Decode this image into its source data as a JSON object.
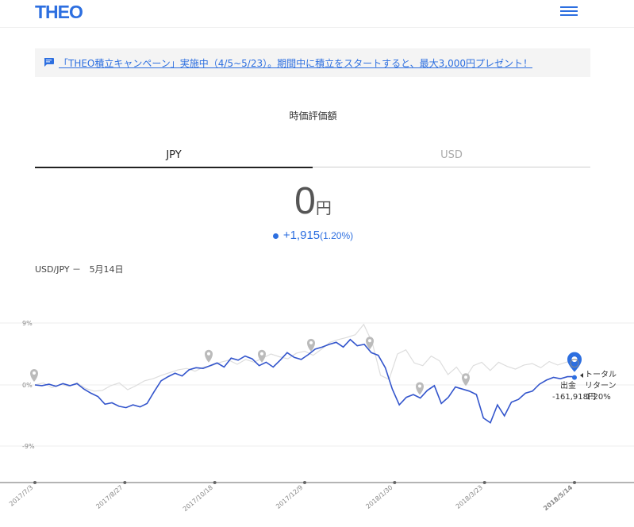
{
  "header": {
    "logo": "THEO",
    "menu_icon": "hamburger-menu-icon"
  },
  "banner": {
    "icon": "message-icon",
    "text": "「THEO積立キャンペーン」実施中（4/5~5/23）。期間中に積立をスタートすると、最大3,000円プレゼント！"
  },
  "section_title": "時価評価額",
  "tabs": [
    {
      "label": "JPY",
      "active": true
    },
    {
      "label": "USD",
      "active": false
    }
  ],
  "valuation": {
    "amount": "0",
    "unit": "円",
    "change": "+1,915",
    "change_pct": "(1.20%)"
  },
  "rate": {
    "label": "USD/JPY －",
    "date": "5月14日"
  },
  "chart_data": {
    "type": "line",
    "grid_labels": [
      "9%",
      "0%",
      "-9%"
    ],
    "x_ticks": [
      "2017/7/3",
      "2017/8/27",
      "2017/10/18",
      "2017/12/9",
      "2018/1/30",
      "2018/3/23",
      "2018/5/14"
    ],
    "ylim": [
      -9,
      9
    ],
    "series": [
      {
        "values": [
          0,
          -0.1,
          0.1,
          -0.2,
          0.2,
          -0.1,
          0.2,
          -0.6,
          -1.2,
          -1.7,
          -2.8,
          -2.6,
          -3.1,
          -3.3,
          -2.9,
          -3.2,
          -2.7,
          -1.0,
          0.6,
          1.2,
          1.7,
          1.3,
          2.2,
          2.5,
          2.4,
          2.8,
          3.2,
          2.6,
          3.9,
          3.6,
          4.2,
          3.8,
          2.8,
          3.3,
          2.6,
          3.6,
          4.7,
          4.0,
          3.7,
          4.4,
          5.2,
          5.5,
          5.9,
          6.2,
          5.5,
          6.6,
          5.7,
          5.9,
          4.7,
          4.3,
          2.5,
          -0.6,
          -2.9,
          -1.8,
          -1.4,
          -1.9,
          -0.8,
          -0.1,
          -2.7,
          -1.8,
          -0.3,
          -0.6,
          -0.9,
          -1.4,
          -4.8,
          -5.5,
          -2.9,
          -4.5,
          -2.5,
          -2.1,
          -1.2,
          -0.9,
          0.1,
          0.7,
          1.1,
          0.9,
          1.2,
          1.2
        ],
        "color": "#3355cc"
      },
      {
        "values": [
          0,
          0.3,
          -0.4,
          0.1,
          -0.2,
          0.3,
          -0.5,
          -0.9,
          -0.8,
          -0.1,
          0.3,
          -0.7,
          -0.1,
          0.6,
          0.9,
          1.4,
          1.8,
          2.2,
          2.4,
          2.0,
          2.6,
          2.8,
          3.3,
          3.6,
          3.0,
          3.7,
          3.3,
          3.9,
          4.5,
          4.1,
          3.8,
          4.6,
          4.9,
          4.3,
          5.2,
          6.2,
          6.6,
          6.9,
          7.3,
          8.8,
          6.2,
          1.4,
          0.8,
          4.5,
          5.1,
          3.2,
          2.8,
          4.2,
          3.5,
          1.5,
          2.6,
          0.9,
          2.8,
          3.3,
          2.1,
          3.3,
          2.7,
          2.3,
          2.9,
          3.1,
          2.5,
          3.4,
          2.9,
          3.3,
          3.6
        ],
        "color": "#dddddd"
      }
    ],
    "annotations": {
      "line1": "トータル",
      "line2": "リターン",
      "line3": "出金",
      "value": "-161,918円",
      "pct": "1.20%"
    }
  }
}
